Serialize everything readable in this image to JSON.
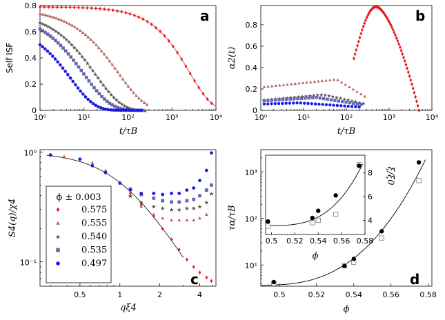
{
  "colors": {
    "s575": "#e41a1c",
    "s555": "#b5605a",
    "s540": "#505050",
    "s535": "#6666aa",
    "s497": "#1a1aee",
    "fit": "#e41a1c",
    "black": "#000000",
    "c555": "#b07070",
    "c540": "#6a6a6a",
    "c535": "#8a8ac0",
    "c497": "#3a3aff"
  },
  "chart_data": [
    {
      "panel": "a",
      "type": "scatter",
      "xscale": "log",
      "xlim": [
        1,
        10000
      ],
      "ylim": [
        0,
        0.8
      ],
      "xlabel": "t/τB",
      "ylabel": "Self ISF",
      "xticks": [
        "10⁰",
        "10¹",
        "10²",
        "10³",
        "10⁴"
      ],
      "yticks": [
        "0",
        "0.2",
        "0.4",
        "0.6",
        "0.8"
      ],
      "series": [
        {
          "phi": "0.575",
          "marker": "diamond",
          "color_key": "s575",
          "A": 0.79,
          "tau": 2500,
          "beta": 0.85,
          "tmin": 1,
          "tmax": 8000
        },
        {
          "phi": "0.555",
          "marker": "triangle",
          "color_key": "s555",
          "A": 0.78,
          "tau": 60,
          "beta": 0.7,
          "tmin": 1,
          "tmax": 270
        },
        {
          "phi": "0.540",
          "marker": "star",
          "color_key": "s540",
          "A": 0.76,
          "tau": 18,
          "beta": 0.72,
          "tmin": 1,
          "tmax": 250
        },
        {
          "phi": "0.535",
          "marker": "square",
          "color_key": "s535",
          "A": 0.75,
          "tau": 10,
          "beta": 0.72,
          "tmin": 1,
          "tmax": 220
        },
        {
          "phi": "0.497",
          "marker": "circle",
          "color_key": "s497",
          "A": 0.66,
          "tau": 5,
          "beta": 0.8,
          "tmin": 1,
          "tmax": 200
        }
      ]
    },
    {
      "panel": "b",
      "type": "scatter",
      "xscale": "log",
      "xlim": [
        1,
        10000
      ],
      "ylim": [
        0,
        0.98
      ],
      "xlabel": "t/τB",
      "ylabel": "α2(t)",
      "xticks": [
        "10⁰",
        "10¹",
        "10²",
        "10³",
        "10⁴"
      ],
      "yticks": [
        "0",
        "0.2",
        "0.4",
        "0.6",
        "0.8"
      ],
      "series": [
        {
          "phi": "0.575",
          "marker": "diamond",
          "color_key": "s575",
          "shape": "peak",
          "peak": 0.97,
          "tpeak": 500,
          "tmin": 150,
          "tmax": 5000
        },
        {
          "phi": "0.555",
          "marker": "triangle",
          "color_key": "s555",
          "shape": "plateau",
          "y0": 0.22,
          "peak": 0.29,
          "tpeak": 60,
          "tmin": 1.2,
          "tmax": 270
        },
        {
          "phi": "0.540",
          "marker": "star",
          "color_key": "s540",
          "shape": "plateau",
          "y0": 0.1,
          "peak": 0.15,
          "tpeak": 30,
          "tmin": 1.2,
          "tmax": 250
        },
        {
          "phi": "0.535",
          "marker": "square",
          "color_key": "s535",
          "shape": "plateau",
          "y0": 0.09,
          "peak": 0.12,
          "tpeak": 20,
          "tmin": 1.2,
          "tmax": 220
        },
        {
          "phi": "0.497",
          "marker": "circle",
          "color_key": "s497",
          "shape": "plateau",
          "y0": 0.06,
          "peak": 0.07,
          "tpeak": 8,
          "tmin": 1.2,
          "tmax": 200
        }
      ]
    },
    {
      "panel": "c",
      "type": "scatter",
      "xscale": "log",
      "yscale": "log",
      "xlim": [
        0.25,
        5.3
      ],
      "ylim": [
        0.06,
        1.05
      ],
      "xlabel": "qξ4",
      "ylabel": "S4(q)/χ4",
      "xticks": [
        0.5,
        1,
        2,
        4
      ],
      "xticklabels": [
        "0.5",
        "1",
        "2",
        "4"
      ],
      "yticklabels": [
        "10⁰",
        "10⁻¹"
      ],
      "legend_title": "ϕ ± 0.003",
      "series": [
        {
          "phi": "0.575",
          "marker": "diamond",
          "color_key": "s575",
          "x": [
            0.3,
            0.38,
            0.5,
            0.62,
            0.78,
            1.0,
            1.2,
            1.45,
            1.8,
            2.1,
            2.45,
            2.8,
            3.2,
            3.6,
            4.0,
            4.5,
            4.9
          ],
          "y": [
            0.93,
            0.9,
            0.86,
            0.76,
            0.65,
            0.52,
            0.42,
            0.33,
            0.26,
            0.2,
            0.16,
            0.13,
            0.105,
            0.09,
            0.08,
            0.072,
            0.067
          ]
        },
        {
          "phi": "0.555",
          "marker": "triangle",
          "color_key": "s555",
          "x": [
            0.38,
            0.62,
            0.78,
            1.0,
            1.2,
            1.45,
            1.8,
            2.1,
            2.45,
            2.8,
            3.2,
            3.6,
            4.0,
            4.5
          ],
          "y": [
            0.9,
            0.8,
            0.68,
            0.53,
            0.4,
            0.32,
            0.27,
            0.25,
            0.24,
            0.24,
            0.24,
            0.24,
            0.25,
            0.27
          ]
        },
        {
          "phi": "0.540",
          "marker": "star",
          "color_key": "s540",
          "x": [
            1.2,
            1.45,
            1.8,
            2.1,
            2.45,
            2.8,
            3.2,
            3.6,
            4.0,
            4.5,
            4.9
          ],
          "y": [
            0.4,
            0.35,
            0.32,
            0.31,
            0.3,
            0.3,
            0.31,
            0.31,
            0.32,
            0.35,
            0.42
          ]
        },
        {
          "phi": "0.535",
          "marker": "square",
          "color_key": "s535",
          "x": [
            1.2,
            1.45,
            1.8,
            2.1,
            2.45,
            2.8,
            3.2,
            3.6,
            4.0,
            4.5,
            4.9
          ],
          "y": [
            0.46,
            0.41,
            0.38,
            0.36,
            0.35,
            0.35,
            0.36,
            0.37,
            0.4,
            0.45,
            0.5
          ]
        },
        {
          "phi": "0.497",
          "marker": "circle",
          "color_key": "s497",
          "x": [
            0.3,
            0.5,
            0.62,
            0.78,
            1.0,
            1.2,
            1.45,
            1.8,
            2.1,
            2.45,
            2.8,
            3.2,
            3.6,
            4.0,
            4.5,
            4.9
          ],
          "y": [
            0.94,
            0.86,
            0.75,
            0.65,
            0.52,
            0.45,
            0.42,
            0.42,
            0.41,
            0.42,
            0.42,
            0.45,
            0.47,
            0.55,
            0.68,
            0.98
          ]
        }
      ]
    },
    {
      "panel": "d",
      "type": "scatter",
      "yscale": "log",
      "xlim": [
        0.49,
        0.582
      ],
      "ylim": [
        3.5,
        3000
      ],
      "xlabel": "ϕ",
      "ylabel": "τα/τB",
      "xticks": [
        0.5,
        0.52,
        0.54,
        0.56,
        0.58
      ],
      "xticklabels": [
        "0.5",
        "0.52",
        "0.54",
        "0.56",
        "0.58"
      ],
      "yticklabels": [
        "10¹",
        "10²",
        "10³"
      ],
      "filled": {
        "x": [
          0.497,
          0.535,
          0.54,
          0.555,
          0.575
        ],
        "y": [
          4.3,
          9.5,
          13.5,
          53,
          1600
        ]
      },
      "open": {
        "x": [
          0.497,
          0.535,
          0.54,
          0.555,
          0.575
        ],
        "y": [
          4.0,
          9.8,
          11.5,
          38,
          650
        ]
      },
      "inset": {
        "xlim": [
          0.495,
          0.58
        ],
        "ylim": [
          2.8,
          9.5
        ],
        "ylabel": "ξ/ξ0",
        "xlabel": "ϕ",
        "xticks": [
          0.5,
          0.52,
          0.54,
          0.56,
          0.58
        ],
        "xticklabels": [
          "0.5",
          "0.52",
          "0.54",
          "0.56",
          "0.58"
        ],
        "yticks": [
          4,
          6,
          8
        ],
        "yticklabels": [
          "4",
          "6",
          "8"
        ],
        "filled": {
          "x": [
            0.497,
            0.535,
            0.54,
            0.555,
            0.575
          ],
          "y": [
            3.9,
            4.2,
            4.8,
            6.1,
            8.6
          ]
        },
        "open": {
          "x": [
            0.497,
            0.535,
            0.54,
            0.555,
            0.575
          ],
          "y": [
            3.5,
            3.8,
            4.0,
            4.5,
            8.7
          ]
        }
      }
    }
  ],
  "labels": {
    "a": "a",
    "b": "b",
    "c": "c",
    "d": "d",
    "a_ylabel": "Self ISF",
    "a_xlabel": "t/τB",
    "b_ylabel": "α2(t)",
    "b_xlabel": "t/τB",
    "c_ylabel": "S4(q)/χ4",
    "c_xlabel": "qξ4",
    "d_ylabel": "τα/τB",
    "d_xlabel": "ϕ",
    "inset_ylabel": "ξ/ξ0",
    "inset_xlabel": "ϕ",
    "legend_title": "ϕ ± 0.003",
    "legend": [
      "0.575",
      "0.555",
      "0.540",
      "0.535",
      "0.497"
    ]
  }
}
